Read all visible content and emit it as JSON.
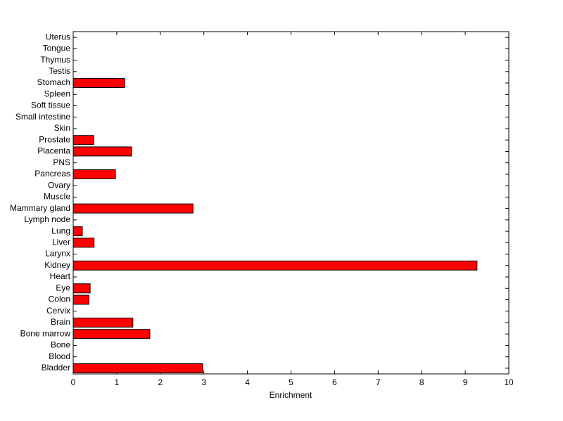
{
  "chart_data": {
    "type": "bar",
    "orientation": "horizontal",
    "xlabel": "Enrichment",
    "categories": [
      "Bladder",
      "Blood",
      "Bone",
      "Bone marrow",
      "Brain",
      "Cervix",
      "Colon",
      "Eye",
      "Heart",
      "Kidney",
      "Larynx",
      "Liver",
      "Lung",
      "Lymph node",
      "Mammary gland",
      "Muscle",
      "Ovary",
      "Pancreas",
      "PNS",
      "Placenta",
      "Prostate",
      "Skin",
      "Small intestine",
      "Soft tissue",
      "Spleen",
      "Stomach",
      "Testis",
      "Thymus",
      "Tongue",
      "Uterus"
    ],
    "values": [
      2.97,
      0,
      0,
      1.76,
      1.37,
      0,
      0.36,
      0.39,
      0,
      9.27,
      0,
      0.48,
      0.21,
      0,
      2.75,
      0,
      0,
      0.97,
      0,
      1.34,
      0.47,
      0,
      0,
      0,
      0,
      1.18,
      0,
      0,
      0,
      0
    ],
    "color": "#ff0000",
    "xlim": [
      0,
      10
    ],
    "xticks": [
      0,
      1,
      2,
      3,
      4,
      5,
      6,
      7,
      8,
      9,
      10
    ]
  }
}
